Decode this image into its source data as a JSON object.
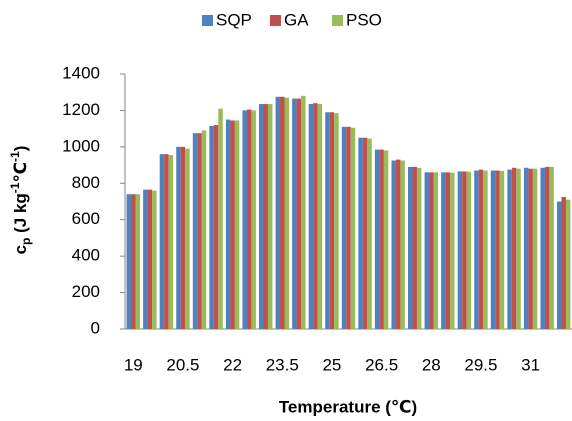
{
  "chart_data": {
    "type": "bar",
    "x_label": "Temperature (℃)",
    "y_label_parts": [
      "c",
      "p",
      " (J kg",
      "-1",
      "℃",
      "-1",
      ")"
    ],
    "categories": [
      "19",
      null,
      null,
      "20.5",
      null,
      null,
      "22",
      null,
      null,
      "23.5",
      null,
      null,
      "25",
      null,
      null,
      "26.5",
      null,
      null,
      "28",
      null,
      null,
      "29.5",
      null,
      null,
      "31",
      null,
      null
    ],
    "series": [
      {
        "name": "SQP",
        "color": "#4f81bd",
        "values": [
          740,
          765,
          960,
          1000,
          1075,
          1115,
          1150,
          1200,
          1235,
          1275,
          1265,
          1235,
          1190,
          1110,
          1050,
          985,
          925,
          890,
          860,
          860,
          865,
          870,
          870,
          875,
          885,
          885,
          700
        ]
      },
      {
        "name": "GA",
        "color": "#c0504d",
        "values": [
          740,
          765,
          960,
          1000,
          1075,
          1120,
          1145,
          1205,
          1235,
          1275,
          1265,
          1240,
          1190,
          1110,
          1050,
          985,
          930,
          890,
          860,
          860,
          865,
          875,
          870,
          885,
          880,
          890,
          725
        ]
      },
      {
        "name": "PSO",
        "color": "#9bbb59",
        "values": [
          740,
          760,
          955,
          990,
          1090,
          1210,
          1145,
          1200,
          1235,
          1270,
          1280,
          1235,
          1185,
          1105,
          1045,
          980,
          925,
          885,
          860,
          858,
          863,
          870,
          868,
          880,
          880,
          890,
          710
        ]
      }
    ],
    "ylim": [
      0,
      1400
    ],
    "yticks": [
      0,
      200,
      400,
      600,
      800,
      1000,
      1200,
      1400
    ],
    "grid": false,
    "legend": "top"
  }
}
